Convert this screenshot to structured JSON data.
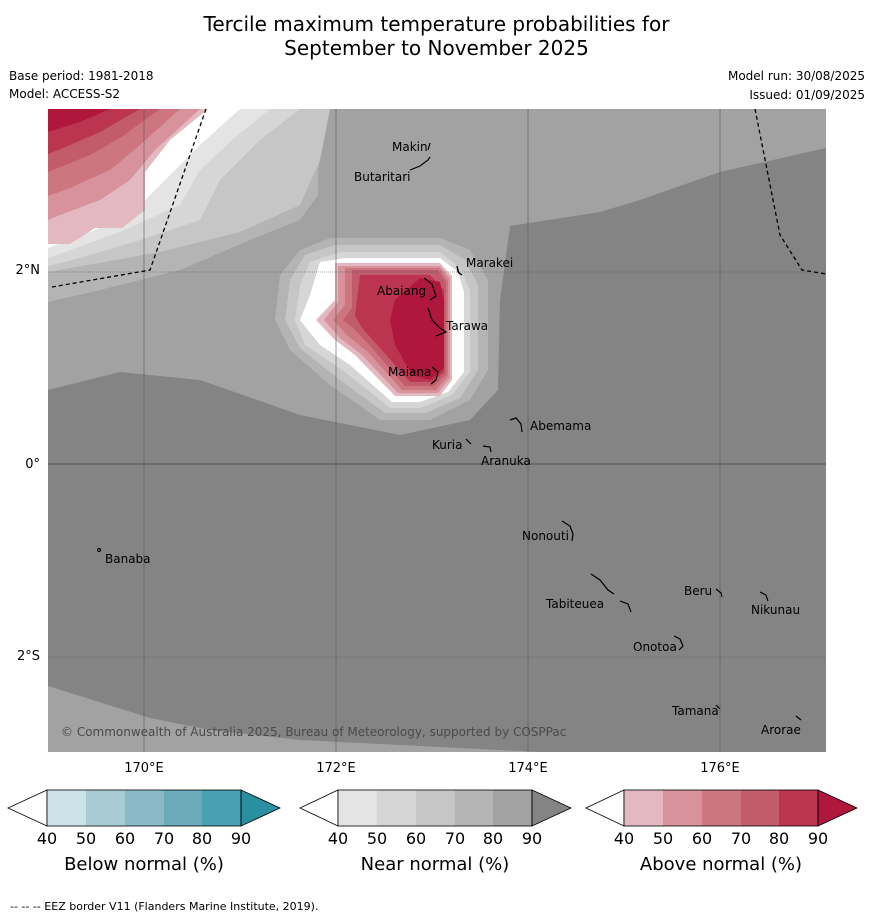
{
  "title_line1": "Tercile maximum temperature probabilities for",
  "title_line2": "September to November 2025",
  "base_period": "Base period: 1981-2018",
  "model": "Model: ACCESS-S2",
  "model_run": "Model run: 30/08/2025",
  "issued": "Issued: 01/09/2025",
  "copyright": "© Commonwealth of Australia 2025, Bureau of Meteorology, supported by COSPPac",
  "footer": "--  --  -- EEZ border V11 (Flanders Marine Institute, 2019).",
  "lat_labels": [
    "2°N",
    "0°",
    "2°S"
  ],
  "lon_labels": [
    "170°E",
    "172°E",
    "174°E",
    "176°E"
  ],
  "islands": [
    "Makin",
    "Butaritari",
    "Marakei",
    "Abaiang",
    "Tarawa",
    "Maiana",
    "Abemama",
    "Kuria",
    "Aranuka",
    "Nonouti",
    "Banaba",
    "Tabiteuea",
    "Beru",
    "Nikunau",
    "Onotoa",
    "Tamana",
    "Arorae"
  ],
  "colorbars": [
    {
      "label": "Below normal (%)",
      "ticks": [
        "40",
        "50",
        "60",
        "70",
        "80",
        "90"
      ],
      "colors": [
        "#ffffff",
        "#cde3ea",
        "#a9cbd4",
        "#8bbac6",
        "#6aaab9",
        "#48a1b2",
        "#2b8fa2"
      ]
    },
    {
      "label": "Near normal (%)",
      "ticks": [
        "40",
        "50",
        "60",
        "70",
        "80",
        "90"
      ],
      "colors": [
        "#ffffff",
        "#e4e4e4",
        "#d6d6d6",
        "#c6c6c6",
        "#b4b4b4",
        "#a2a2a2",
        "#848484"
      ]
    },
    {
      "label": "Above normal (%)",
      "ticks": [
        "40",
        "50",
        "60",
        "70",
        "80",
        "90"
      ],
      "colors": [
        "#ffffff",
        "#e3b8c0",
        "#d7929c",
        "#cd7680",
        "#c25b6b",
        "#bb3550",
        "#b0173d"
      ]
    }
  ]
}
